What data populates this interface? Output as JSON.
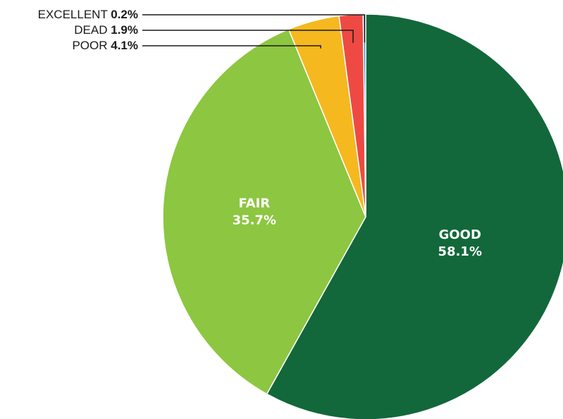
{
  "chart_data": {
    "type": "pie",
    "title": "",
    "slices": [
      {
        "label": "GOOD",
        "value": 58.1,
        "display": "58.1%",
        "color": "#12683a",
        "label_position": "inside"
      },
      {
        "label": "FAIR",
        "value": 35.7,
        "display": "35.7%",
        "color": "#8dc641",
        "label_position": "inside"
      },
      {
        "label": "POOR",
        "value": 4.1,
        "display": "4.1%",
        "color": "#f6b81f",
        "label_position": "callout"
      },
      {
        "label": "DEAD",
        "value": 1.9,
        "display": "1.9%",
        "color": "#ee4a43",
        "label_position": "callout"
      },
      {
        "label": "EXCELLENT",
        "value": 0.2,
        "display": "0.2%",
        "color": "#3a8fc9",
        "label_position": "callout"
      }
    ],
    "start_position": "12 o'clock",
    "direction": "clockwise",
    "legend": "none",
    "label_text_color": "#ffffff",
    "callout_text_color": "#1a1a1a"
  }
}
